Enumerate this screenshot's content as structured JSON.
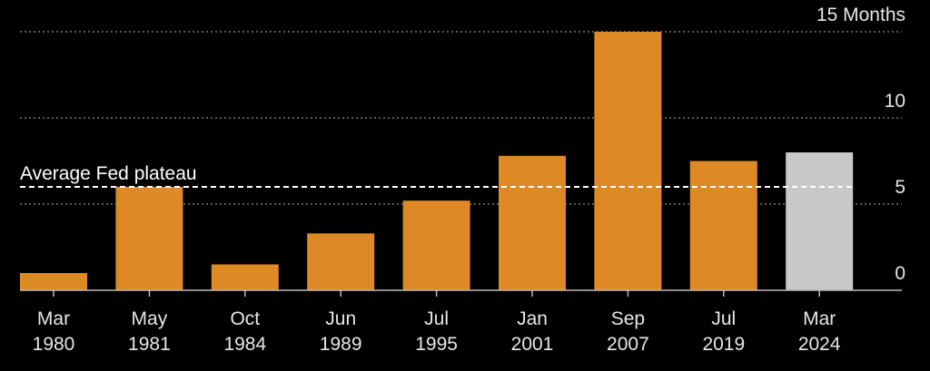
{
  "chart_data": {
    "type": "bar",
    "categories": [
      "Mar 1980",
      "May 1981",
      "Oct 1984",
      "Jun 1989",
      "Jul 1995",
      "Jan 2001",
      "Sep 2007",
      "Jul 2019",
      "Mar 2024"
    ],
    "category_lines": [
      [
        "Mar",
        "1980"
      ],
      [
        "May",
        "1981"
      ],
      [
        "Oct",
        "1984"
      ],
      [
        "Jun",
        "1989"
      ],
      [
        "Jul",
        "1995"
      ],
      [
        "Jan",
        "2001"
      ],
      [
        "Sep",
        "2007"
      ],
      [
        "Jul",
        "2019"
      ],
      [
        "Mar",
        "2024"
      ]
    ],
    "values": [
      1,
      6,
      1.5,
      3.3,
      5.2,
      7.8,
      15,
      7.5,
      8
    ],
    "bar_colors": [
      "#dd8a26",
      "#dd8a26",
      "#dd8a26",
      "#dd8a26",
      "#dd8a26",
      "#dd8a26",
      "#dd8a26",
      "#dd8a26",
      "#c8c8c8"
    ],
    "ylim": [
      0,
      15
    ],
    "yticks": [
      0,
      5,
      10,
      15
    ],
    "ytick_labels": [
      "0",
      "5",
      "10",
      "15 Months"
    ],
    "y_axis_side": "right",
    "grid": "horizontal dotted",
    "reference_line": {
      "label": "Average Fed plateau",
      "value": 6,
      "style": "dashed"
    },
    "colors": {
      "bar": "#dd8a26",
      "highlight": "#c8c8c8",
      "background": "#000000",
      "text": "#e6e6e6",
      "grid": "#777777"
    }
  }
}
